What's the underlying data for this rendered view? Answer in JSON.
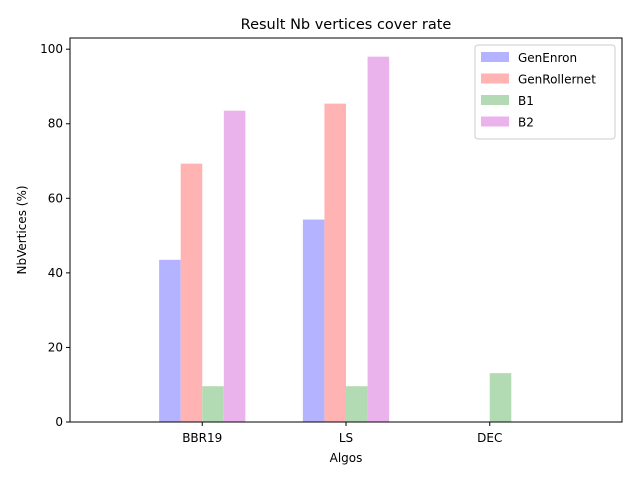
{
  "chart_data": {
    "type": "bar",
    "title": "Result Nb vertices cover rate",
    "xlabel": "Algos",
    "ylabel": "NbVertices (%)",
    "categories": [
      "BBR19",
      "LS",
      "DEC"
    ],
    "ylim": [
      0,
      103
    ],
    "yticks": [
      0,
      20,
      40,
      60,
      80,
      100
    ],
    "grid": false,
    "legend_position": "top-right",
    "series": [
      {
        "name": "GenEnron",
        "color": "#b3b3ff",
        "values": [
          43.5,
          54.3,
          null
        ]
      },
      {
        "name": "GenRollernet",
        "color": "#ffb3b3",
        "values": [
          69.3,
          85.4,
          null
        ]
      },
      {
        "name": "B1",
        "color": "#b3dbb3",
        "values": [
          9.6,
          9.6,
          13.1
        ]
      },
      {
        "name": "B2",
        "color": "#ebb3eb",
        "values": [
          83.5,
          98.0,
          null
        ]
      }
    ]
  }
}
